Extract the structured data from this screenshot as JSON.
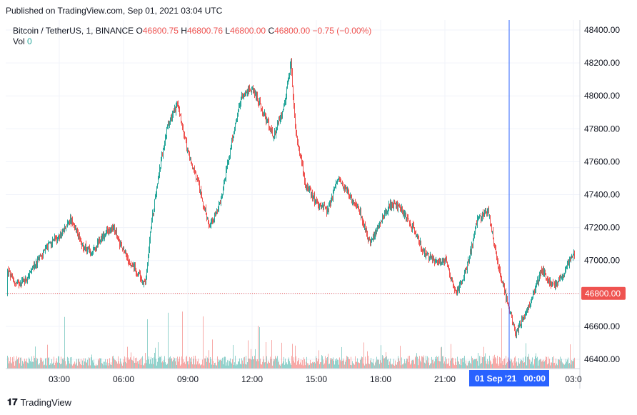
{
  "publish_text": "Published on TradingView.com, Sep 01, 2021 03:04 UTC",
  "legend": {
    "symbol": "Bitcoin / TetherUS, 1, BINANCE",
    "o_label": "O",
    "o_value": "46800.75",
    "h_label": "H",
    "h_value": "46800.76",
    "l_label": "L",
    "l_value": "46800.00",
    "c_label": "C",
    "c_value": "46800.00",
    "change": "−0.75 (−0.00%)",
    "vol_label": "Vol",
    "vol_value": "0"
  },
  "footer": {
    "logo": "𝟏𝟕",
    "brand": "TradingView"
  },
  "colors": {
    "up": "#26a69a",
    "down": "#ef5350",
    "crosshair": "#2962ff",
    "price_tag": "#ef5350"
  },
  "chart_data": {
    "type": "candlestick",
    "x_ticks": [
      "03:00",
      "06:00",
      "09:00",
      "12:00",
      "15:00",
      "18:00",
      "21:00",
      "03:0"
    ],
    "x_highlight": "01 Sep '21   00:00",
    "y_ticks": [
      48400,
      48200,
      48000,
      47800,
      47600,
      47400,
      47200,
      47000,
      46800,
      46600,
      46400
    ],
    "y_labels": [
      "48400.00",
      "48200.00",
      "48000.00",
      "47800.00",
      "47600.00",
      "47400.00",
      "47200.00",
      "47000.00",
      "46800.00",
      "46600.00",
      "46400.00"
    ],
    "ylim": [
      46340,
      48450
    ],
    "last_price": 46800.0,
    "last_price_label": "46800.00",
    "crosshair_x": "01 Sep '21 00:00",
    "path_hours": [
      0,
      0.5,
      1,
      1.5,
      2,
      2.5,
      3,
      3.5,
      4,
      4.5,
      5,
      5.5,
      6,
      6.5,
      7,
      7.3,
      7.6,
      8,
      8.5,
      9,
      9.5,
      10,
      10.5,
      11,
      11.5,
      12,
      12.5,
      13,
      13.5,
      13.8,
      14,
      14.5,
      15,
      15.5,
      16,
      16.5,
      17,
      17.5,
      18,
      18.5,
      19,
      19.5,
      20,
      20.5,
      21,
      21.5,
      22,
      22.5,
      23,
      23.5,
      24,
      24.3,
      24.6,
      25,
      25.5,
      26,
      26.5,
      27,
      27.3
    ],
    "path_prices": [
      46800,
      46950,
      46850,
      46900,
      47000,
      47100,
      47150,
      47250,
      47100,
      47050,
      47150,
      47200,
      47050,
      46950,
      46850,
      47250,
      47500,
      47800,
      47950,
      47650,
      47450,
      47200,
      47350,
      47700,
      48000,
      48050,
      47900,
      47750,
      47950,
      48200,
      47800,
      47450,
      47350,
      47300,
      47500,
      47400,
      47300,
      47100,
      47250,
      47350,
      47300,
      47200,
      47050,
      47000,
      47000,
      46800,
      46950,
      47250,
      47300,
      46950,
      46700,
      46550,
      46650,
      46750,
      46950,
      46850,
      46900,
      47050,
      46800
    ]
  }
}
